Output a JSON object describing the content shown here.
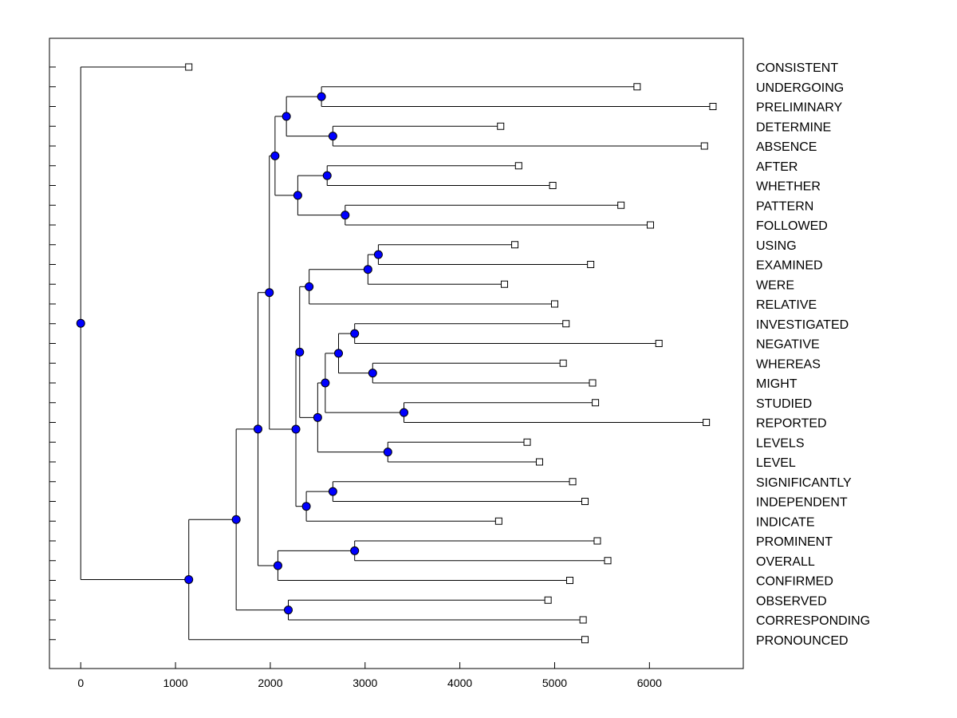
{
  "chart_data": {
    "type": "dendrogram",
    "title": "",
    "xlabel": "",
    "ylabel": "",
    "xlim": [
      -330,
      6990
    ],
    "xticks": [
      0,
      1000,
      2000,
      3000,
      4000,
      5000,
      6000
    ],
    "xtick_labels": [
      "0",
      "1000",
      "2000",
      "3000",
      "4000",
      "5000",
      "6000"
    ],
    "grid": false,
    "colors": {
      "node": "#0000ff",
      "line": "#000000",
      "leaf_fill": "#ffffff"
    },
    "leaves": [
      {
        "label": "CONSISTENT",
        "x": 1140
      },
      {
        "label": "UNDERGOING",
        "x": 5870
      },
      {
        "label": "PRELIMINARY",
        "x": 6670
      },
      {
        "label": "DETERMINE",
        "x": 4430
      },
      {
        "label": "ABSENCE",
        "x": 6580
      },
      {
        "label": "AFTER",
        "x": 4620
      },
      {
        "label": "WHETHER",
        "x": 4980
      },
      {
        "label": "PATTERN",
        "x": 5700
      },
      {
        "label": "FOLLOWED",
        "x": 6010
      },
      {
        "label": "USING",
        "x": 4580
      },
      {
        "label": "EXAMINED",
        "x": 5380
      },
      {
        "label": "WERE",
        "x": 4470
      },
      {
        "label": "RELATIVE",
        "x": 5000
      },
      {
        "label": "INVESTIGATED",
        "x": 5120
      },
      {
        "label": "NEGATIVE",
        "x": 6100
      },
      {
        "label": "WHEREAS",
        "x": 5090
      },
      {
        "label": "MIGHT",
        "x": 5400
      },
      {
        "label": "STUDIED",
        "x": 5430
      },
      {
        "label": "REPORTED",
        "x": 6600
      },
      {
        "label": "LEVELS",
        "x": 4710
      },
      {
        "label": "LEVEL",
        "x": 4840
      },
      {
        "label": "SIGNIFICANTLY",
        "x": 5190
      },
      {
        "label": "INDEPENDENT",
        "x": 5320
      },
      {
        "label": "INDICATE",
        "x": 4410
      },
      {
        "label": "PROMINENT",
        "x": 5450
      },
      {
        "label": "OVERALL",
        "x": 5560
      },
      {
        "label": "CONFIRMED",
        "x": 5160
      },
      {
        "label": "OBSERVED",
        "x": 4930
      },
      {
        "label": "CORRESPONDING",
        "x": 5300
      },
      {
        "label": "PRONOUNCED",
        "x": 5320
      }
    ],
    "merges": [
      {
        "id": "n1",
        "x": 2540,
        "children": [
          1,
          2
        ]
      },
      {
        "id": "n2",
        "x": 2660,
        "children": [
          3,
          4
        ]
      },
      {
        "id": "n3",
        "x": 2170,
        "children": [
          "n1",
          "n2"
        ]
      },
      {
        "id": "n4",
        "x": 2600,
        "children": [
          5,
          6
        ]
      },
      {
        "id": "n5",
        "x": 2790,
        "children": [
          7,
          8
        ]
      },
      {
        "id": "n6",
        "x": 2290,
        "children": [
          "n4",
          "n5"
        ]
      },
      {
        "id": "n7",
        "x": 2050,
        "children": [
          "n3",
          "n6"
        ]
      },
      {
        "id": "n8",
        "x": 3140,
        "children": [
          9,
          10
        ]
      },
      {
        "id": "n9",
        "x": 3030,
        "children": [
          "n8",
          11
        ]
      },
      {
        "id": "n10",
        "x": 2410,
        "children": [
          "n9",
          12
        ]
      },
      {
        "id": "n11",
        "x": 2890,
        "children": [
          13,
          14
        ]
      },
      {
        "id": "n12",
        "x": 3080,
        "children": [
          15,
          16
        ]
      },
      {
        "id": "n13",
        "x": 2720,
        "children": [
          "n11",
          "n12"
        ]
      },
      {
        "id": "n14",
        "x": 3410,
        "children": [
          17,
          18
        ]
      },
      {
        "id": "n15",
        "x": 2580,
        "children": [
          "n13",
          "n14"
        ]
      },
      {
        "id": "n16",
        "x": 3240,
        "children": [
          19,
          20
        ]
      },
      {
        "id": "n17",
        "x": 2500,
        "children": [
          "n15",
          "n16"
        ]
      },
      {
        "id": "n18",
        "x": 2310,
        "children": [
          "n10",
          "n17"
        ]
      },
      {
        "id": "n19",
        "x": 2660,
        "children": [
          21,
          22
        ]
      },
      {
        "id": "n20",
        "x": 2380,
        "children": [
          "n19",
          23
        ]
      },
      {
        "id": "n21",
        "x": 2270,
        "children": [
          "n18",
          "n20"
        ]
      },
      {
        "id": "n22",
        "x": 1990,
        "children": [
          "n7",
          "n21"
        ]
      },
      {
        "id": "n23",
        "x": 2890,
        "children": [
          24,
          25
        ]
      },
      {
        "id": "n24",
        "x": 2080,
        "children": [
          "n23",
          26
        ]
      },
      {
        "id": "n25",
        "x": 1870,
        "children": [
          "n22",
          "n24"
        ]
      },
      {
        "id": "n26",
        "x": 2190,
        "children": [
          27,
          28
        ]
      },
      {
        "id": "n27",
        "x": 1640,
        "children": [
          "n25",
          "n26"
        ]
      },
      {
        "id": "n28",
        "x": 1140,
        "children": [
          "n27",
          29
        ]
      },
      {
        "id": "root",
        "x": 0,
        "children": [
          0,
          "n28"
        ]
      }
    ]
  }
}
